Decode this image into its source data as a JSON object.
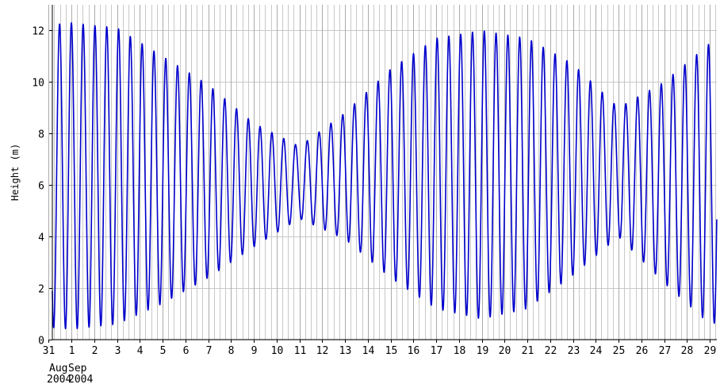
{
  "chart_data": {
    "type": "line",
    "title": "",
    "ylabel": "Height (m)",
    "xlabel": "",
    "ylim": [
      0,
      13
    ],
    "yticks": [
      "0",
      "2",
      "4",
      "6",
      "8",
      "10",
      "12"
    ],
    "xticks": [
      "31",
      "1",
      "2",
      "3",
      "4",
      "5",
      "6",
      "7",
      "8",
      "9",
      "10",
      "11",
      "12",
      "13",
      "14",
      "15",
      "16",
      "17",
      "18",
      "19",
      "20",
      "21",
      "22",
      "23",
      "24",
      "25",
      "26",
      "27",
      "28",
      "29"
    ],
    "month_labels": [
      {
        "month": "Aug",
        "year": "2004"
      },
      {
        "month": "Sep",
        "year": "2004"
      }
    ],
    "grid": true,
    "line_color": "#0000cc",
    "grid_color": "#c8c8c8",
    "series": [
      {
        "tide_period_hours": 12.42,
        "samples_per_day": 96,
        "x_days": [
          -1.3,
          0,
          2,
          4,
          6,
          8,
          10,
          12,
          14,
          16,
          18,
          20,
          22,
          24,
          26,
          28,
          29.2
        ],
        "high_water_m": [
          12.2,
          12.3,
          12.1,
          11.0,
          9.9,
          8.4,
          7.5,
          8.8,
          10.5,
          11.7,
          12.0,
          11.7,
          10.7,
          9.0,
          10.0,
          11.5,
          11.8
        ],
        "low_water_m": [
          0.5,
          0.4,
          0.6,
          1.4,
          2.4,
          3.6,
          4.7,
          3.9,
          2.4,
          1.2,
          0.8,
          1.2,
          2.5,
          4.0,
          2.2,
          0.6,
          0.8
        ]
      }
    ]
  }
}
